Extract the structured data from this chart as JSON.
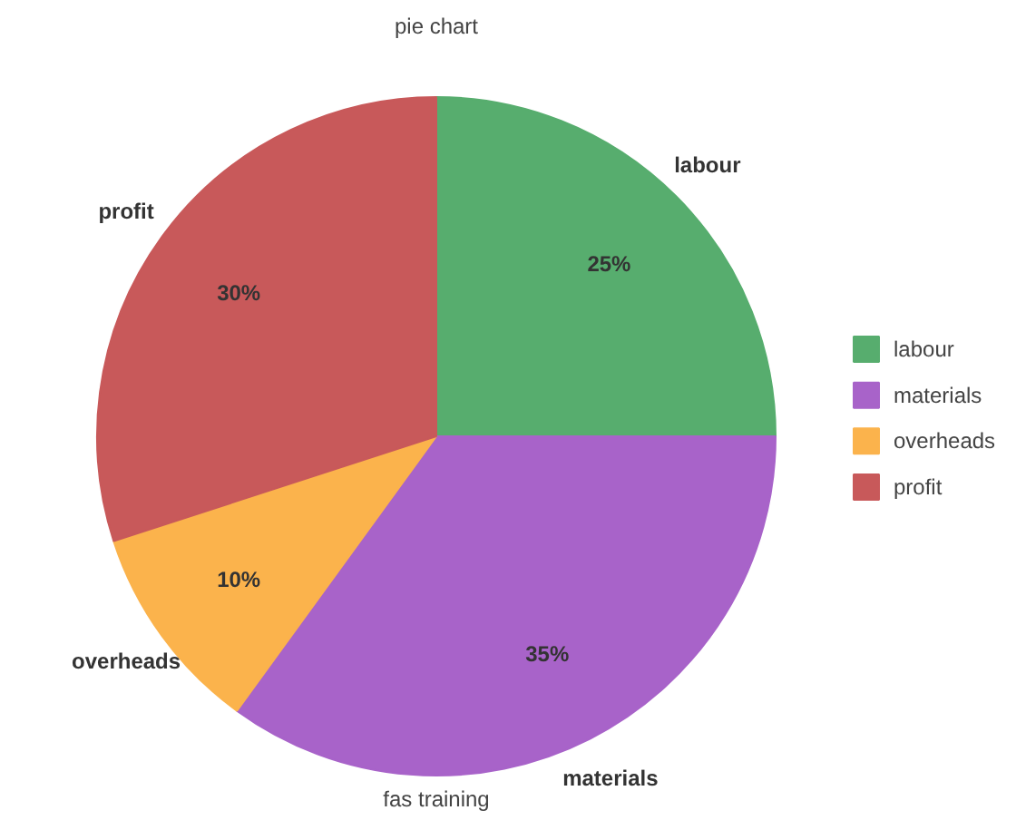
{
  "chart_data": {
    "type": "pie",
    "title": "pie chart",
    "xlabel": "fas training",
    "categories": [
      "labour",
      "materials",
      "overheads",
      "profit"
    ],
    "values": [
      25,
      35,
      10,
      30
    ],
    "colors": [
      "#57ad6e",
      "#a863c9",
      "#fbb34c",
      "#c8595a"
    ],
    "value_labels": [
      "25%",
      "35%",
      "10%",
      "30%"
    ],
    "legend": "right"
  }
}
